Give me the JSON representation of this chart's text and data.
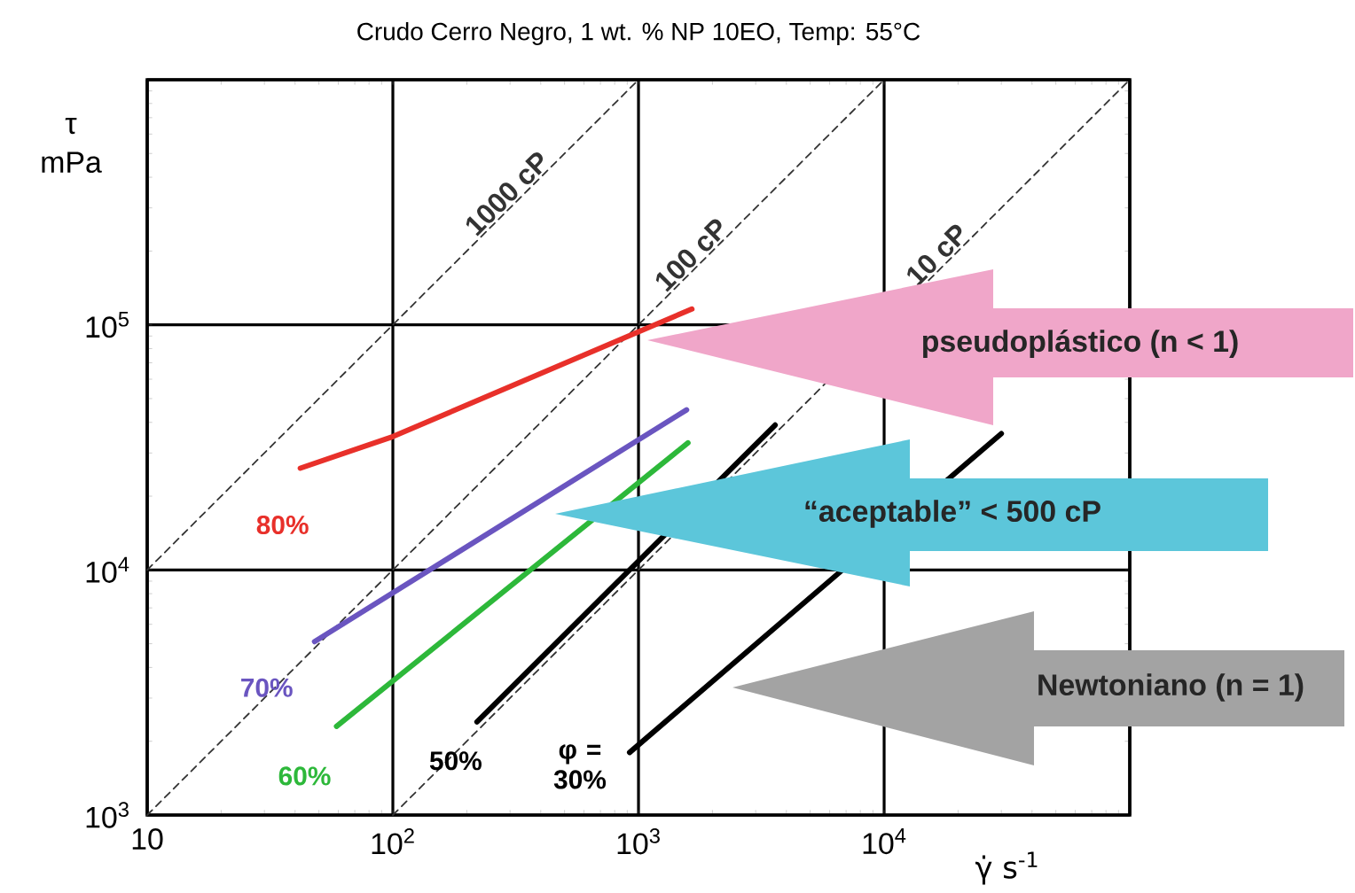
{
  "chart_data": {
    "type": "line",
    "title": "Crudo Cerro Negro, 1 wt. % NP 10EO, Temp: 55°C",
    "xlabel": "γ̇ s$^{-1}$",
    "ylabel": "τ mPa",
    "log": "xy",
    "grid": true,
    "xlim": [
      10,
      100000
    ],
    "ylim": [
      1000,
      1000000
    ],
    "xticks": [
      10,
      {
        "value": 100,
        "label": "10$^{2}$"
      },
      {
        "value": 1000,
        "label": "10$^{3}$"
      },
      {
        "value": 10000,
        "label": "10$^{4}$"
      },
      {
        "value": 100000,
        "label": null
      }
    ],
    "yticks": [
      {
        "value": 1000,
        "label": "10$^{3}$"
      },
      {
        "value": 10000,
        "label": "10$^{4}$"
      },
      {
        "value": 100000,
        "label": "10$^{5}$"
      },
      {
        "value": 1000000,
        "label": null
      }
    ],
    "series": [
      {
        "name": "1000 cP",
        "color": "#333333",
        "line_style": "dashed",
        "x": [
          10,
          1000
        ],
        "values": [
          10000,
          1000000
        ]
      },
      {
        "name": "100 cP",
        "color": "#333333",
        "line_style": "dashed",
        "x": [
          10,
          10000
        ],
        "values": [
          1000,
          1000000
        ]
      },
      {
        "name": "10 cP",
        "color": "#333333",
        "line_style": "dashed",
        "x": [
          100,
          100000
        ],
        "values": [
          1000,
          1000000
        ]
      },
      {
        "name": "80%",
        "color": "#e8302a",
        "line_style": "solid",
        "x": [
          42,
          100,
          1650
        ],
        "values": [
          26000,
          35000,
          116000
        ]
      },
      {
        "name": "70%",
        "color": "#6a55c0",
        "line_style": "solid",
        "x": [
          48,
          1570
        ],
        "values": [
          5100,
          45000
        ]
      },
      {
        "name": "60%",
        "color": "#2db83a",
        "line_style": "solid",
        "x": [
          59,
          1590
        ],
        "values": [
          2300,
          33000
        ]
      },
      {
        "name": "50%",
        "color": "#000000",
        "line_style": "solid",
        "x": [
          220,
          3600
        ],
        "values": [
          2400,
          39000
        ]
      },
      {
        "name": "φ = 30%",
        "color": "#000000",
        "line_style": "solid",
        "x": [
          920,
          30000
        ],
        "values": [
          1800,
          36000
        ]
      }
    ],
    "annotations": [
      "pseudoplástico (n < 1)",
      "“aceptable” < 500 cP",
      "Newtoniano (n = 1)"
    ]
  }
}
